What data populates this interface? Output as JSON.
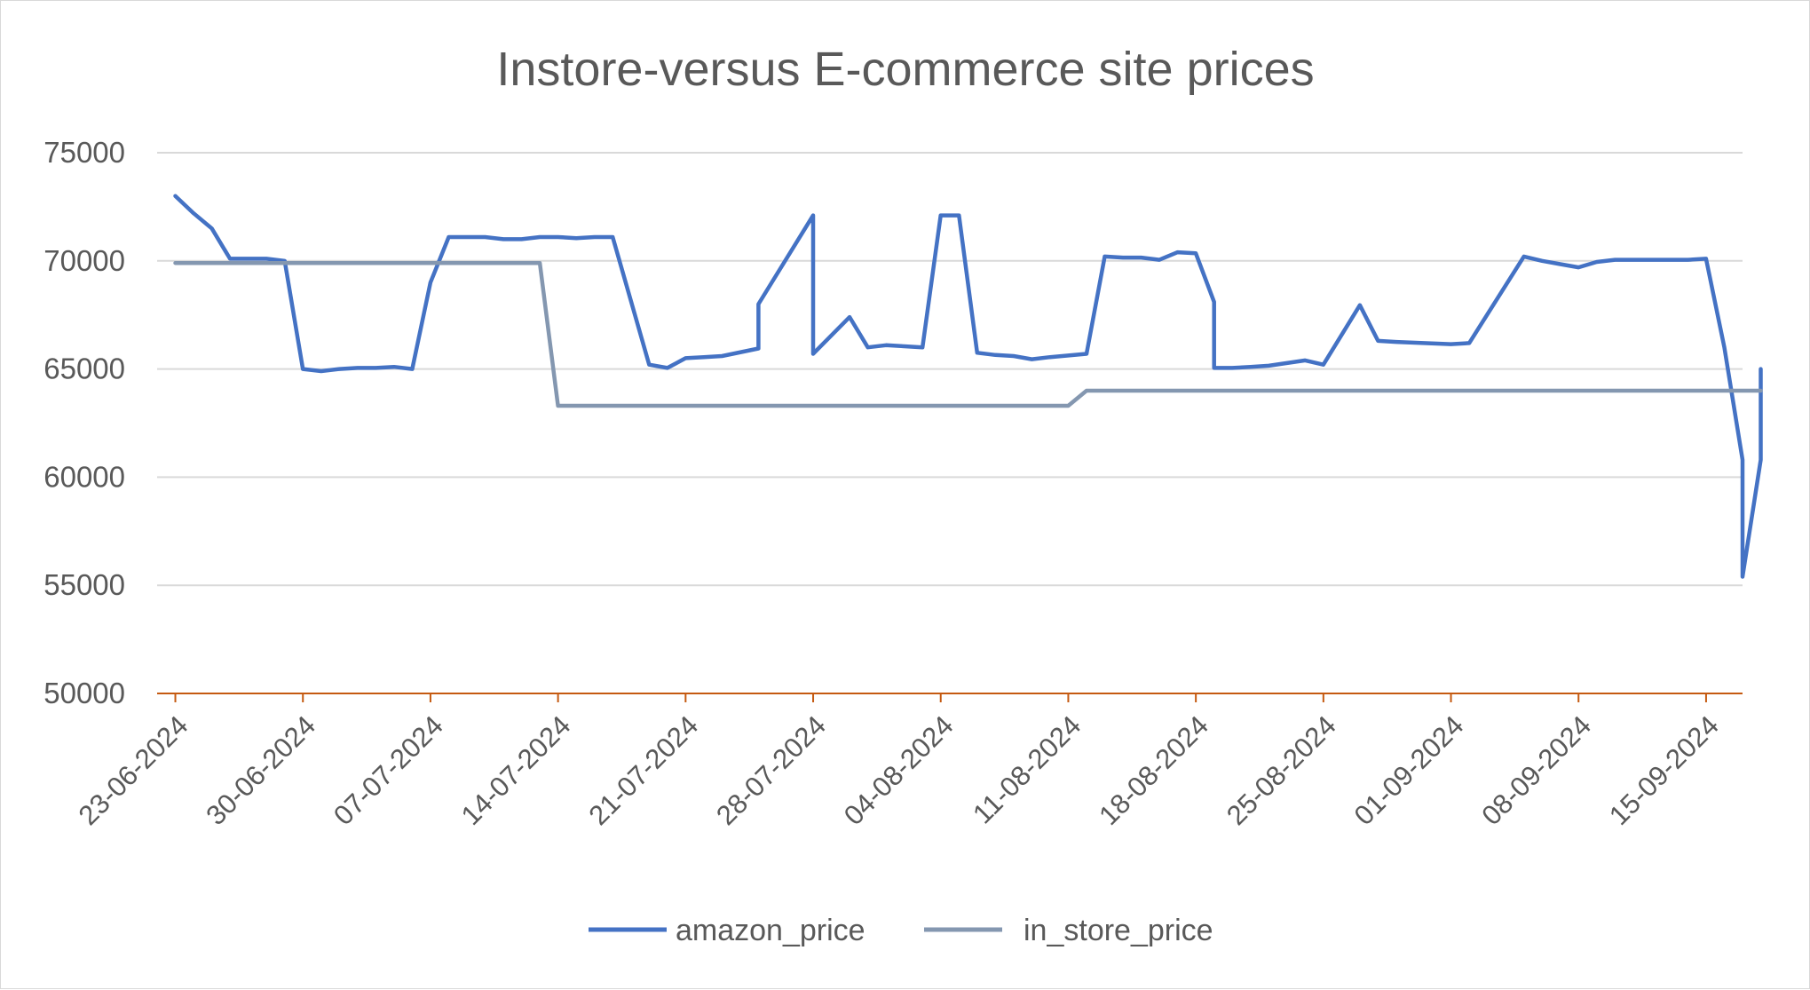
{
  "chart_data": {
    "type": "line",
    "title": "Instore-versus E-commerce site prices",
    "xlabel": "",
    "ylabel": "",
    "x_range": [
      "2024-06-22",
      "2024-09-17"
    ],
    "ylim": [
      50000,
      75000
    ],
    "y_ticks": [
      "50000",
      "55000",
      "60000",
      "65000",
      "70000",
      "75000"
    ],
    "x_ticks": [
      "23-06-2024",
      "30-06-2024",
      "07-07-2024",
      "14-07-2024",
      "21-07-2024",
      "28-07-2024",
      "04-08-2024",
      "11-08-2024",
      "18-08-2024",
      "25-08-2024",
      "01-09-2024",
      "08-09-2024",
      "15-09-2024"
    ],
    "grid": true,
    "legend_position": "bottom",
    "series": [
      {
        "name": "amazon_price",
        "color": "#4472c4",
        "points": [
          [
            "2024-06-23",
            73000
          ],
          [
            "2024-06-24",
            72200
          ],
          [
            "2024-06-25",
            71500
          ],
          [
            "2024-06-26",
            70100
          ],
          [
            "2024-06-27",
            70100
          ],
          [
            "2024-06-28",
            70100
          ],
          [
            "2024-06-29",
            70000
          ],
          [
            "2024-06-30",
            65000
          ],
          [
            "2024-07-01",
            64900
          ],
          [
            "2024-07-02",
            65000
          ],
          [
            "2024-07-03",
            65050
          ],
          [
            "2024-07-04",
            65050
          ],
          [
            "2024-07-05",
            65100
          ],
          [
            "2024-07-06",
            65000
          ],
          [
            "2024-07-07",
            69000
          ],
          [
            "2024-07-08",
            71100
          ],
          [
            "2024-07-09",
            71100
          ],
          [
            "2024-07-10",
            71100
          ],
          [
            "2024-07-11",
            71000
          ],
          [
            "2024-07-12",
            71000
          ],
          [
            "2024-07-13",
            71100
          ],
          [
            "2024-07-14",
            71100
          ],
          [
            "2024-07-15",
            71050
          ],
          [
            "2024-07-16",
            71100
          ],
          [
            "2024-07-17",
            71100
          ],
          [
            "2024-07-19",
            65200
          ],
          [
            "2024-07-20",
            65050
          ],
          [
            "2024-07-21",
            65500
          ],
          [
            "2024-07-22",
            65550
          ],
          [
            "2024-07-23",
            65600
          ],
          [
            "2024-07-25",
            65950
          ],
          [
            "2024-07-25",
            68000
          ],
          [
            "2024-07-28",
            72100
          ],
          [
            "2024-07-28",
            65700
          ],
          [
            "2024-07-30",
            67400
          ],
          [
            "2024-07-31",
            66000
          ],
          [
            "2024-08-01",
            66100
          ],
          [
            "2024-08-02",
            66050
          ],
          [
            "2024-08-03",
            66000
          ],
          [
            "2024-08-04",
            72100
          ],
          [
            "2024-08-05",
            72100
          ],
          [
            "2024-08-06",
            65750
          ],
          [
            "2024-08-07",
            65650
          ],
          [
            "2024-08-08",
            65600
          ],
          [
            "2024-08-09",
            65450
          ],
          [
            "2024-08-10",
            65550
          ],
          [
            "2024-08-12",
            65700
          ],
          [
            "2024-08-13",
            70200
          ],
          [
            "2024-08-14",
            70150
          ],
          [
            "2024-08-15",
            70150
          ],
          [
            "2024-08-16",
            70050
          ],
          [
            "2024-08-17",
            70400
          ],
          [
            "2024-08-18",
            70350
          ],
          [
            "2024-08-19",
            68100
          ],
          [
            "2024-08-19",
            65050
          ],
          [
            "2024-08-20",
            65050
          ],
          [
            "2024-08-21",
            65100
          ],
          [
            "2024-08-22",
            65150
          ],
          [
            "2024-08-24",
            65400
          ],
          [
            "2024-08-25",
            65200
          ],
          [
            "2024-08-27",
            67950
          ],
          [
            "2024-08-28",
            66300
          ],
          [
            "2024-08-29",
            66250
          ],
          [
            "2024-09-01",
            66150
          ],
          [
            "2024-09-02",
            66200
          ],
          [
            "2024-09-05",
            70200
          ],
          [
            "2024-09-06",
            70000
          ],
          [
            "2024-09-07",
            69850
          ],
          [
            "2024-09-08",
            69700
          ],
          [
            "2024-09-09",
            69950
          ],
          [
            "2024-09-10",
            70050
          ],
          [
            "2024-09-14",
            70050
          ],
          [
            "2024-09-15",
            70100
          ],
          [
            "2024-09-16",
            66000
          ],
          [
            "2024-09-17",
            60800
          ],
          [
            "2024-09-17",
            55400
          ],
          [
            "2024-09-18",
            60800
          ],
          [
            "2024-09-18",
            65000
          ]
        ]
      },
      {
        "name": "in_store_price",
        "color": "#8497b0",
        "points": [
          [
            "2024-06-23",
            69900
          ],
          [
            "2024-07-13",
            69900
          ],
          [
            "2024-07-14",
            63300
          ],
          [
            "2024-08-11",
            63300
          ],
          [
            "2024-08-12",
            64000
          ],
          [
            "2024-09-18",
            64000
          ]
        ]
      }
    ]
  }
}
